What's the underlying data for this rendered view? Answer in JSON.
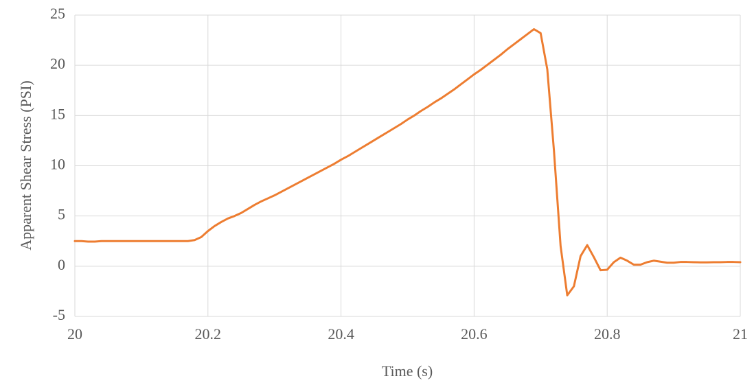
{
  "chart_data": {
    "type": "line",
    "x_label": "Time (s)",
    "y_label": "Apparent Shear Stress (PSI)",
    "x": [
      20,
      20.01,
      20.02,
      20.03,
      20.04,
      20.05,
      20.06,
      20.07,
      20.08,
      20.09,
      20.1,
      20.11,
      20.12,
      20.13,
      20.14,
      20.15,
      20.16,
      20.17,
      20.18,
      20.19,
      20.2,
      20.21,
      20.22,
      20.23,
      20.24,
      20.25,
      20.26,
      20.27,
      20.28,
      20.29,
      20.3,
      20.31,
      20.32,
      20.33,
      20.34,
      20.35,
      20.36,
      20.37,
      20.38,
      20.39,
      20.4,
      20.41,
      20.42,
      20.43,
      20.44,
      20.45,
      20.46,
      20.47,
      20.48,
      20.49,
      20.5,
      20.51,
      20.52,
      20.53,
      20.54,
      20.55,
      20.56,
      20.57,
      20.58,
      20.59,
      20.6,
      20.61,
      20.62,
      20.63,
      20.64,
      20.65,
      20.66,
      20.67,
      20.68,
      20.69,
      20.7,
      20.71,
      20.72,
      20.73,
      20.74,
      20.75,
      20.76,
      20.77,
      20.78,
      20.79,
      20.8,
      20.81,
      20.82,
      20.83,
      20.84,
      20.85,
      20.86,
      20.87,
      20.88,
      20.89,
      20.9,
      20.91,
      20.92,
      20.93,
      20.94,
      20.95,
      20.96,
      20.97,
      20.98,
      20.99,
      21
    ],
    "series": [
      {
        "name": "Apparent Shear Stress",
        "color": "#ed7d31",
        "values": [
          2.5,
          2.5,
          2.45,
          2.45,
          2.5,
          2.5,
          2.5,
          2.5,
          2.5,
          2.5,
          2.5,
          2.5,
          2.5,
          2.5,
          2.5,
          2.5,
          2.5,
          2.5,
          2.6,
          2.9,
          3.5,
          4.0,
          4.4,
          4.75,
          5.0,
          5.3,
          5.7,
          6.1,
          6.45,
          6.75,
          7.05,
          7.4,
          7.75,
          8.1,
          8.45,
          8.8,
          9.15,
          9.5,
          9.85,
          10.2,
          10.6,
          10.95,
          11.35,
          11.75,
          12.15,
          12.55,
          12.95,
          13.35,
          13.75,
          14.15,
          14.6,
          15.0,
          15.45,
          15.85,
          16.3,
          16.7,
          17.15,
          17.6,
          18.1,
          18.6,
          19.1,
          19.55,
          20.05,
          20.55,
          21.05,
          21.6,
          22.1,
          22.6,
          23.1,
          23.6,
          23.2,
          19.6,
          11.5,
          2.0,
          -2.9,
          -2.0,
          1.0,
          2.1,
          0.9,
          -0.4,
          -0.35,
          0.4,
          0.85,
          0.55,
          0.15,
          0.15,
          0.4,
          0.55,
          0.45,
          0.35,
          0.35,
          0.42,
          0.42,
          0.4,
          0.38,
          0.38,
          0.4,
          0.4,
          0.42,
          0.42,
          0.4
        ]
      }
    ],
    "xlim": [
      20,
      21
    ],
    "xticks": [
      20,
      20.2,
      20.4,
      20.6,
      20.8,
      21
    ],
    "ylim": [
      -5,
      25
    ],
    "yticks": [
      -5,
      0,
      5,
      10,
      15,
      20,
      25
    ],
    "grid": true
  }
}
